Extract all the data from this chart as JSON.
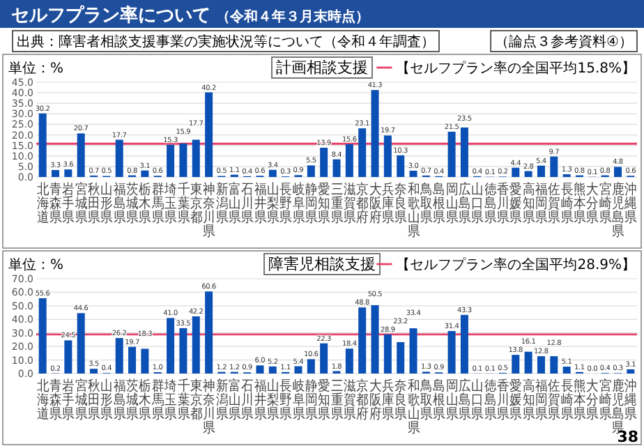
{
  "chart_data": [
    {
      "type": "bar",
      "title": "計画相談支援",
      "ylabel": "単位：%",
      "annotations": [
        "セルフプラン率について",
        "（令和４年３月末時点）",
        "出典：障害者相談支援事業の実施状況等について（令和４年調査）",
        "（論点３参考資料④）"
      ],
      "categories": [
        "北海道",
        "青森県",
        "岩手県",
        "宮城県",
        "秋田県",
        "山形県",
        "福島県",
        "茨城県",
        "栃木県",
        "群馬県",
        "埼玉県",
        "千葉県",
        "東京都",
        "神奈川県",
        "新潟県",
        "富山県",
        "石川県",
        "福井県",
        "山梨県",
        "長野県",
        "岐阜県",
        "静岡県",
        "愛知県",
        "三重県",
        "滋賀県",
        "京都府",
        "大阪府",
        "兵庫県",
        "奈良県",
        "和歌山県",
        "鳥取県",
        "島根県",
        "岡山県",
        "広島県",
        "山口県",
        "徳島県",
        "香川県",
        "愛媛県",
        "高知県",
        "福岡県",
        "佐賀県",
        "長崎県",
        "熊本県",
        "大分県",
        "宮崎県",
        "鹿児島県",
        "沖縄県"
      ],
      "values": [
        30.2,
        3.3,
        3.6,
        20.7,
        0.7,
        0.5,
        17.7,
        0.8,
        3.1,
        0.6,
        15.3,
        15.9,
        17.7,
        40.2,
        0.5,
        1.1,
        0.4,
        0.6,
        3.4,
        0.3,
        0.9,
        5.5,
        13.9,
        8.4,
        15.6,
        23.1,
        41.3,
        19.7,
        10.3,
        3.0,
        0.7,
        0.4,
        21.5,
        23.5,
        0.4,
        0.1,
        0.2,
        4.4,
        2.8,
        5.4,
        9.7,
        1.3,
        0.8,
        0.1,
        0.8,
        4.8,
        0.6
      ],
      "color": "#0b50b4",
      "grid": "y",
      "value_labels": [
        "30.2",
        "3.3",
        "3.6",
        "20.7",
        "0.7",
        "0.5",
        "17.7",
        "0.8",
        "3.1",
        "0.6",
        "15.3",
        "15.9",
        "17.7",
        "40.2",
        "0.5",
        "1.1",
        "0.4",
        "0.6",
        "3.4",
        "0.3",
        "0.9",
        "5.5",
        "13.9",
        "8.4",
        "15.6",
        "23.1",
        "41.3",
        "19.7",
        "10.3",
        "3.0",
        "0.7",
        "0.4",
        "21.5",
        "23.5",
        "0.4",
        "0.1",
        "0.2",
        "4.4",
        "2.8",
        "5.4",
        "9.7",
        "1.3",
        "0.8",
        "0.1",
        "0.8",
        "4.8",
        "0.6"
      ],
      "ylim": [
        0,
        45
      ],
      "yticks": [
        {
          "value": 0,
          "label": "0.0"
        },
        {
          "value": 5,
          "label": "5.0"
        },
        {
          "value": 10,
          "label": "10.0"
        },
        {
          "value": 15,
          "label": "15.0"
        },
        {
          "value": 20,
          "label": "20.0"
        },
        {
          "value": 25,
          "label": "25.0"
        },
        {
          "value": 30,
          "label": "30.0"
        },
        {
          "value": 35,
          "label": "35.0"
        },
        {
          "value": 40,
          "label": "40.0"
        },
        {
          "value": 45,
          "label": "45.0"
        }
      ],
      "ref_lines": [
        {
          "axis": "y",
          "value": 15.8,
          "label": "【セルフプラン率の全国平均15.8%】",
          "color": "#e8416a"
        }
      ]
    },
    {
      "type": "bar",
      "title": "障害児相談支援",
      "ylabel": "単位：%",
      "annotations": [
        "38"
      ],
      "categories": [
        "北海道",
        "青森県",
        "岩手県",
        "宮城県",
        "秋田県",
        "山形県",
        "福島県",
        "茨城県",
        "栃木県",
        "群馬県",
        "埼玉県",
        "千葉県",
        "東京都",
        "神奈川県",
        "新潟県",
        "富山県",
        "石川県",
        "福井県",
        "山梨県",
        "長野県",
        "岐阜県",
        "静岡県",
        "愛知県",
        "三重県",
        "滋賀県",
        "京都府",
        "大阪府",
        "兵庫県",
        "奈良県",
        "和歌山県",
        "鳥取県",
        "島根県",
        "岡山県",
        "広島県",
        "山口県",
        "徳島県",
        "香川県",
        "愛媛県",
        "高知県",
        "福岡県",
        "佐賀県",
        "長崎県",
        "熊本県",
        "大分県",
        "宮崎県",
        "鹿児島県",
        "沖縄県"
      ],
      "values": [
        55.6,
        0.2,
        24.5,
        44.6,
        3.5,
        0.4,
        26.2,
        19.7,
        18.3,
        1.0,
        41.0,
        33.5,
        42.2,
        60.6,
        1.2,
        1.2,
        0.9,
        6.0,
        5.2,
        1.1,
        5.4,
        10.6,
        22.3,
        1.8,
        18.4,
        48.8,
        50.5,
        28.9,
        23.2,
        33.4,
        1.3,
        0.9,
        31.4,
        43.3,
        0.1,
        0.1,
        0.5,
        13.8,
        16.1,
        12.8,
        12.8,
        5.1,
        1.1,
        0.0,
        0.4,
        0.3,
        3.1
      ],
      "color": "#0b50b4",
      "grid": "y",
      "value_labels": [
        "55.6",
        "0.2",
        "24.5",
        "44.6",
        "3.5",
        "0.4",
        "26.2",
        "19.7",
        "18.3",
        "1.0",
        "41.0",
        "33.5",
        "42.2",
        "60.6",
        "1.2",
        "1.2",
        "0.9",
        "6.0",
        "5.2",
        "1.1",
        "5.4",
        "10.6",
        "22.3",
        "1.8",
        "18.4",
        "48.8",
        "50.5",
        "28.9",
        "23.2",
        "33.4",
        "1.3",
        "0.9",
        "31.4",
        "43.3",
        "0.1",
        "0.1",
        "0.5",
        "13.8",
        "16.1",
        "12.8",
        "12.8",
        "5.1",
        "1.1",
        "0.0",
        "0.4",
        "0.3",
        "3.1"
      ],
      "ylim": [
        0,
        70
      ],
      "yticks": [
        {
          "value": 0,
          "label": "0.0"
        },
        {
          "value": 10,
          "label": "10.0"
        },
        {
          "value": 20,
          "label": "20.0"
        },
        {
          "value": 30,
          "label": "30.0"
        },
        {
          "value": 40,
          "label": "40.0"
        },
        {
          "value": 50,
          "label": "50.0"
        },
        {
          "value": 60,
          "label": "60.0"
        },
        {
          "value": 70,
          "label": "70.0"
        }
      ],
      "ref_lines": [
        {
          "axis": "y",
          "value": 28.9,
          "label": "【セルフプラン率の全国平均28.9%】",
          "color": "#e8416a"
        }
      ]
    }
  ]
}
